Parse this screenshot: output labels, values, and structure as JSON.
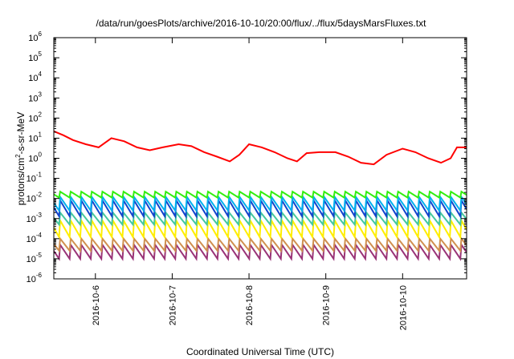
{
  "chart_data": {
    "type": "line",
    "title": "/data/run/goesPlots/archive/2016-10-10/20:00/flux/../flux/5daysMarsFluxes.txt",
    "xlabel": "Coordinated Universal Time (UTC)",
    "ylabel": {
      "main": "protons/cm",
      "sup": "2",
      "rest": "-s-sr-MeV"
    },
    "y_scale": "log",
    "ylim": [
      1e-06,
      1000000.0
    ],
    "y_ticks": [
      {
        "value": 1e-06,
        "base": "10",
        "exp": "-6"
      },
      {
        "value": 1e-05,
        "base": "10",
        "exp": "-5"
      },
      {
        "value": 0.0001,
        "base": "10",
        "exp": "-4"
      },
      {
        "value": 0.001,
        "base": "10",
        "exp": "-3"
      },
      {
        "value": 0.01,
        "base": "10",
        "exp": "-2"
      },
      {
        "value": 0.1,
        "base": "10",
        "exp": "-1"
      },
      {
        "value": 1,
        "base": "10",
        "exp": "0"
      },
      {
        "value": 10.0,
        "base": "10",
        "exp": "1"
      },
      {
        "value": 100.0,
        "base": "10",
        "exp": "2"
      },
      {
        "value": 1000.0,
        "base": "10",
        "exp": "3"
      },
      {
        "value": 10000.0,
        "base": "10",
        "exp": "4"
      },
      {
        "value": 100000.0,
        "base": "10",
        "exp": "5"
      },
      {
        "value": 1000000.0,
        "base": "10",
        "exp": "6"
      }
    ],
    "xlim": [
      "2016-10-05T11:00",
      "2016-10-10T20:00"
    ],
    "x_ticks": [
      {
        "value": "2016-10-06T00:00",
        "label": "2016-10-6"
      },
      {
        "value": "2016-10-07T00:00",
        "label": "2016-10-7"
      },
      {
        "value": "2016-10-08T00:00",
        "label": "2016-10-8"
      },
      {
        "value": "2016-10-09T00:00",
        "label": "2016-10-9"
      },
      {
        "value": "2016-10-10T00:00",
        "label": "2016-10-10"
      }
    ],
    "grid": false,
    "legend": "none",
    "series": [
      {
        "color": "#ff0000",
        "points": [
          [
            "2016-10-05T11:00",
            22
          ],
          [
            "2016-10-05T14:00",
            14
          ],
          [
            "2016-10-05T17:00",
            8
          ],
          [
            "2016-10-05T21:00",
            5
          ],
          [
            "2016-10-06T01:00",
            3.5
          ],
          [
            "2016-10-06T05:00",
            10
          ],
          [
            "2016-10-06T09:00",
            7
          ],
          [
            "2016-10-06T13:00",
            3.5
          ],
          [
            "2016-10-06T17:00",
            2.5
          ],
          [
            "2016-10-06T21:00",
            3.5
          ],
          [
            "2016-10-07T02:00",
            5
          ],
          [
            "2016-10-07T06:00",
            4
          ],
          [
            "2016-10-07T10:00",
            2
          ],
          [
            "2016-10-07T14:00",
            1.2
          ],
          [
            "2016-10-07T18:00",
            0.7
          ],
          [
            "2016-10-07T21:00",
            1.5
          ],
          [
            "2016-10-08T00:00",
            5
          ],
          [
            "2016-10-08T04:00",
            3.5
          ],
          [
            "2016-10-08T08:00",
            2
          ],
          [
            "2016-10-08T12:00",
            1
          ],
          [
            "2016-10-08T15:00",
            0.7
          ],
          [
            "2016-10-08T18:00",
            1.8
          ],
          [
            "2016-10-08T22:00",
            2
          ],
          [
            "2016-10-09T03:00",
            2
          ],
          [
            "2016-10-09T07:00",
            1.2
          ],
          [
            "2016-10-09T11:00",
            0.6
          ],
          [
            "2016-10-09T15:00",
            0.5
          ],
          [
            "2016-10-09T19:00",
            1.5
          ],
          [
            "2016-10-10T00:00",
            3
          ],
          [
            "2016-10-10T04:00",
            2
          ],
          [
            "2016-10-10T08:00",
            1
          ],
          [
            "2016-10-10T12:00",
            0.6
          ],
          [
            "2016-10-10T15:00",
            1
          ],
          [
            "2016-10-10T17:00",
            3.5
          ],
          [
            "2016-10-10T20:00",
            3.5
          ]
        ]
      },
      {
        "color": "#33ee11",
        "period_hours": 3.3,
        "high": 0.022,
        "low": 0.011
      },
      {
        "color": "#00b0ee",
        "period_hours": 3.3,
        "high": 0.012,
        "low": 0.0025
      },
      {
        "color": "#1144cc",
        "period_hours": 3.3,
        "high": 0.008,
        "low": 0.0013
      },
      {
        "color": "#44c8a0",
        "period_hours": 3.3,
        "high": 0.002,
        "low": 0.0005
      },
      {
        "color": "#ffee00",
        "period_hours": 3.3,
        "high": 0.0008,
        "low": 0.00012
      },
      {
        "color": "#d09050",
        "period_hours": 3.3,
        "high": 0.0001,
        "low": 2.5e-05
      },
      {
        "color": "#993377",
        "period_hours": 3.3,
        "high": 5e-05,
        "low": 1e-05
      }
    ]
  }
}
